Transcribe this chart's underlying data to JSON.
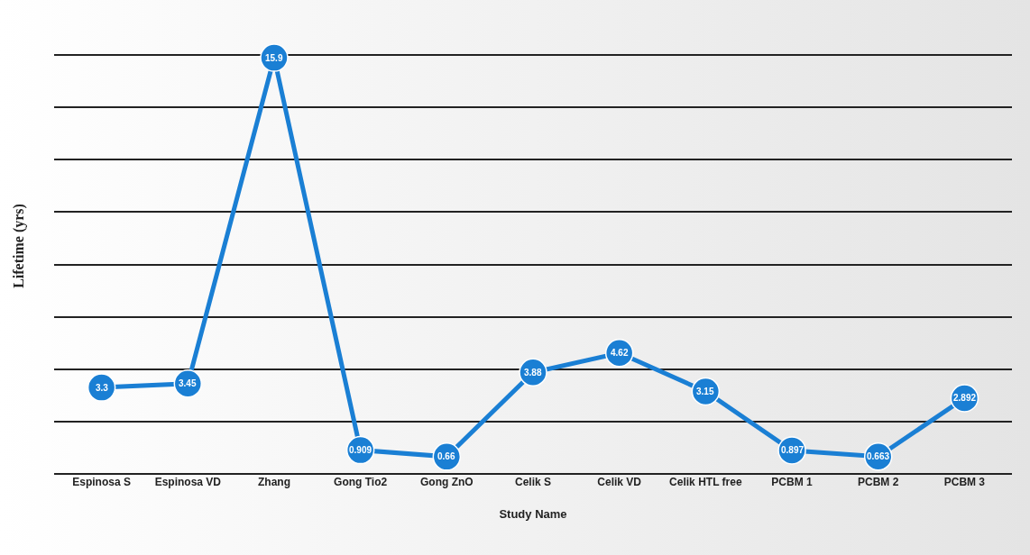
{
  "chart_data": {
    "type": "line",
    "xlabel": "Study Name",
    "ylabel": "Lifetime (yrs)",
    "categories": [
      "Espinosa S",
      "Espinosa VD",
      "Zhang",
      "Gong Tio2",
      "Gong ZnO",
      "Celik S",
      "Celik VD",
      "Celik HTL free",
      "PCBM 1",
      "PCBM 2",
      "PCBM 3"
    ],
    "series": [
      {
        "color": "#1a7fd4",
        "values": [
          3.3,
          3.45,
          15.9,
          0.909,
          0.66,
          3.88,
          4.62,
          3.15,
          0.897,
          0.663,
          2.892
        ]
      }
    ],
    "grid": "y",
    "tick_labels": "x",
    "marker": "circle",
    "line_style": "solid",
    "data_labels": true
  }
}
